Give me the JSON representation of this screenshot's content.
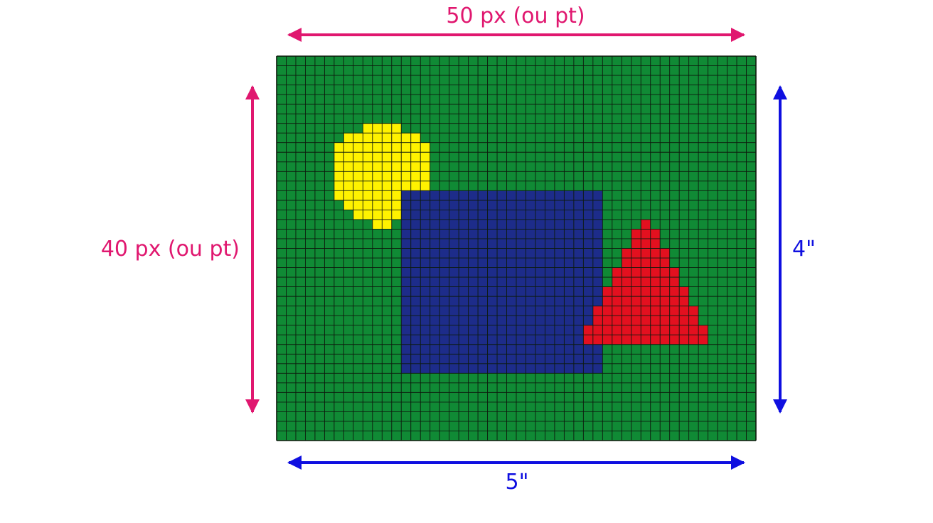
{
  "labels": {
    "top": "50 px (ou pt)",
    "left": "40 px (ou pt)",
    "right": "4\"",
    "bottom": "5\""
  },
  "grid": {
    "columns": 50,
    "rows": 40,
    "background_color": "#108a35",
    "line_color": "#0d1a0d"
  },
  "shapes": {
    "circle": {
      "color": "#fff200"
    },
    "square": {
      "color": "#1d2c8a"
    },
    "triangle": {
      "color": "#e3101f"
    }
  },
  "colors": {
    "pixel_dimension": "#e0176f",
    "physical_dimension": "#0f0fe0"
  }
}
